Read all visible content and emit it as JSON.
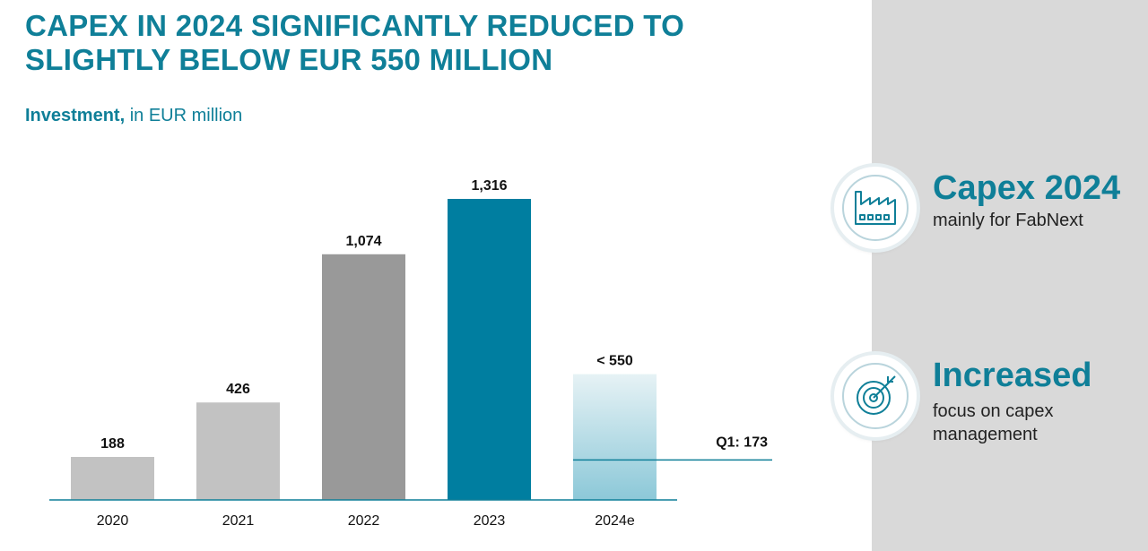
{
  "title": "CAPEX IN 2024 SIGNIFICANTLY REDUCED TO SLIGHTLY BELOW EUR 550 MILLION",
  "subtitle": {
    "bold": "Investment,",
    "rest": " in EUR million"
  },
  "colors": {
    "accent": "#0f7f98",
    "bar_light": "#c2c2c2",
    "bar_mid": "#999999",
    "bar_highlight": "#007ea0",
    "bar_estimate_gradient_top": "#e6f2f5",
    "bar_estimate_gradient_bottom": "#8cc8d8",
    "panel": "#d9d9d9"
  },
  "chart_data": {
    "type": "bar",
    "categories": [
      "2020",
      "2021",
      "2022",
      "2023",
      "2024e"
    ],
    "values": [
      188,
      426,
      1074,
      1316,
      550
    ],
    "value_labels": [
      "188",
      "426",
      "1,074",
      "1,316",
      "< 550"
    ],
    "ylim": [
      0,
      1316
    ],
    "grid": false,
    "annotation": {
      "label": "Q1: 173",
      "value": 173
    }
  },
  "features": [
    {
      "icon": "factory-icon",
      "title": "Capex 2024",
      "text": "mainly for FabNext"
    },
    {
      "icon": "target-icon",
      "title": "Increased",
      "text": "focus on capex management"
    }
  ]
}
